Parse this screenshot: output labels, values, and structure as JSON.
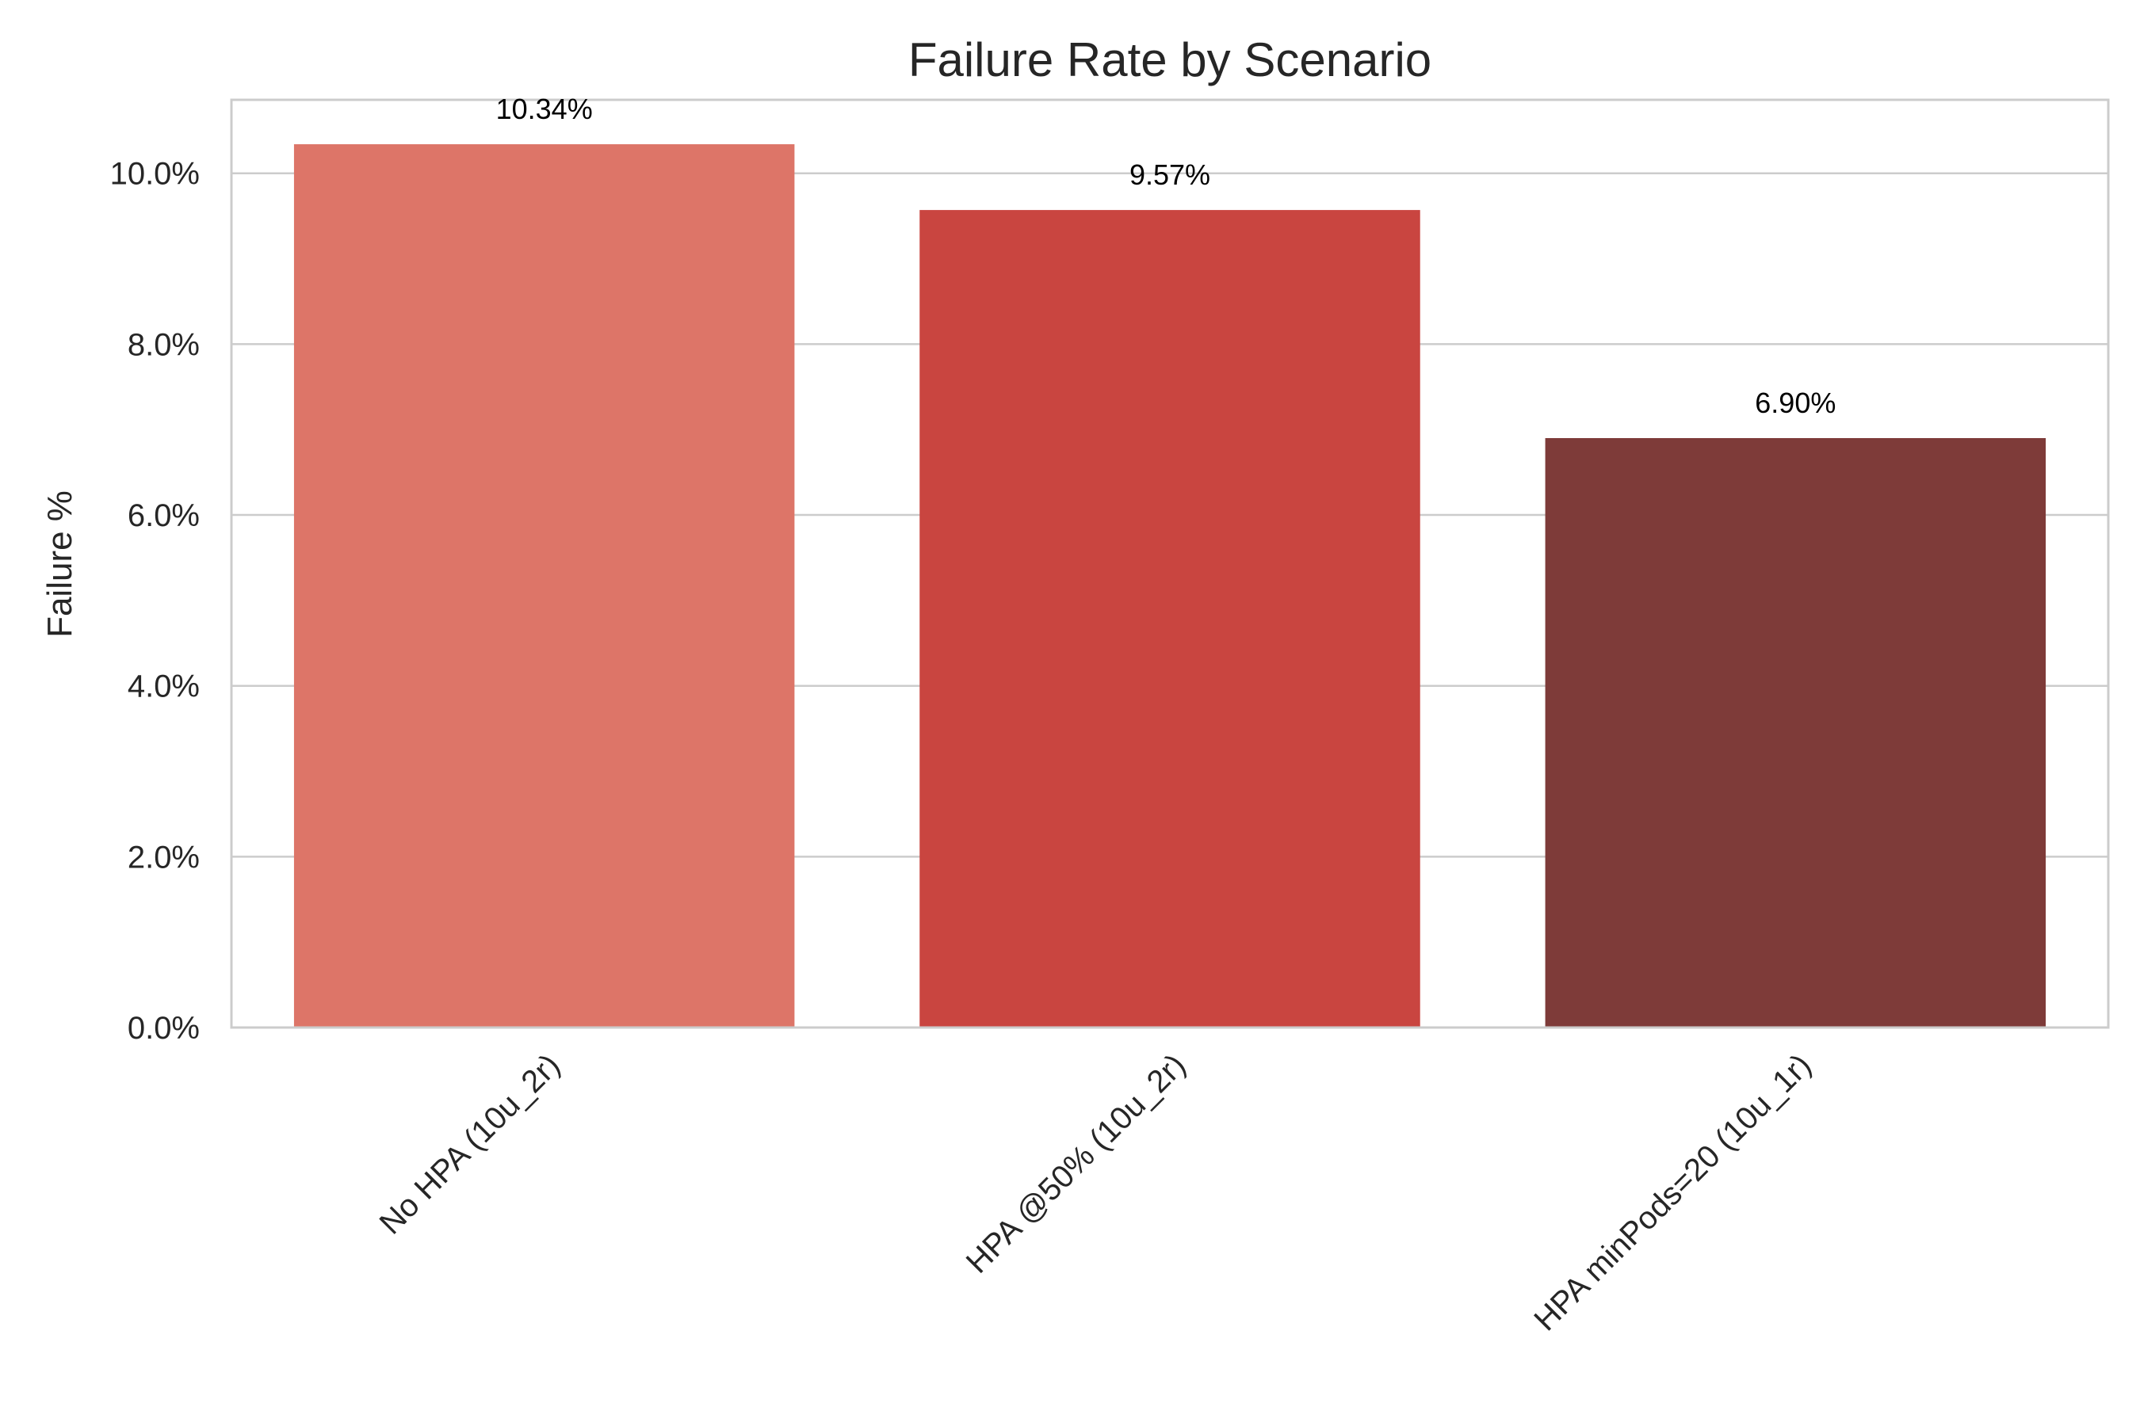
{
  "chart_data": {
    "type": "bar",
    "title": "Failure Rate by Scenario",
    "xlabel": "",
    "ylabel": "Failure %",
    "categories": [
      "No HPA (10u_2r)",
      "HPA @50% (10u_2r)",
      "HPA minPods=20 (10u_1r)"
    ],
    "values": [
      10.34,
      9.57,
      6.9
    ],
    "value_labels": [
      "10.34%",
      "9.57%",
      "6.90%"
    ],
    "colors": [
      "#dd7568",
      "#c94540",
      "#7e3b39"
    ],
    "ylim": [
      0,
      10.86
    ],
    "yticks": [
      0,
      2,
      4,
      6,
      8,
      10
    ],
    "ytick_labels": [
      "0.0%",
      "2.0%",
      "4.0%",
      "6.0%",
      "8.0%",
      "10.0%"
    ],
    "grid": true,
    "grid_axis": "y"
  }
}
